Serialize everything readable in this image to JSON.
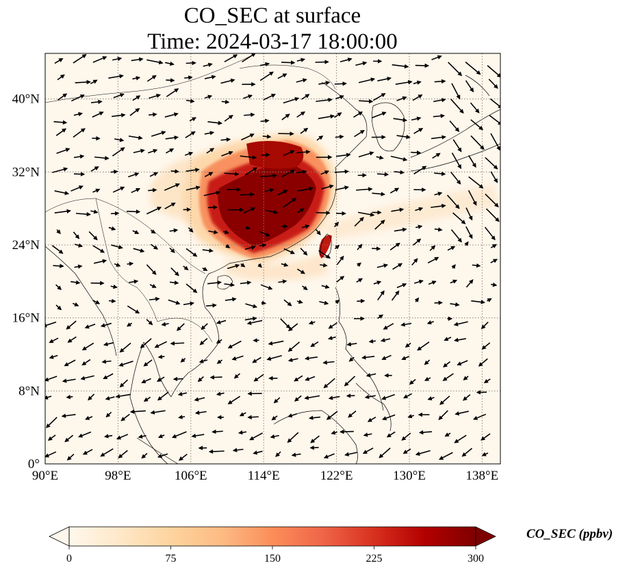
{
  "title": {
    "line1": "CO_SEC at surface",
    "line2": "Time: 2024-03-17 18:00:00"
  },
  "map": {
    "lon_range": [
      90,
      140
    ],
    "lat_range": [
      0,
      45
    ],
    "lon_ticks": [
      "90°E",
      "98°E",
      "106°E",
      "114°E",
      "122°E",
      "130°E",
      "138°E"
    ],
    "lat_ticks": [
      "0°",
      "8°N",
      "16°N",
      "24°N",
      "32°N",
      "40°N"
    ],
    "gridlines": true
  },
  "colorbar": {
    "title": "CO_SEC (ppbv)",
    "min": 0,
    "max": 300,
    "ticks": [
      "0",
      "75",
      "150",
      "225",
      "300"
    ],
    "extend": "both",
    "colormap": "OrRd",
    "colors": [
      "#fff7ec",
      "#fee8c8",
      "#fdd49e",
      "#fdbb84",
      "#fc8d59",
      "#ef6548",
      "#d7301f",
      "#b30000",
      "#7f0000"
    ]
  }
}
